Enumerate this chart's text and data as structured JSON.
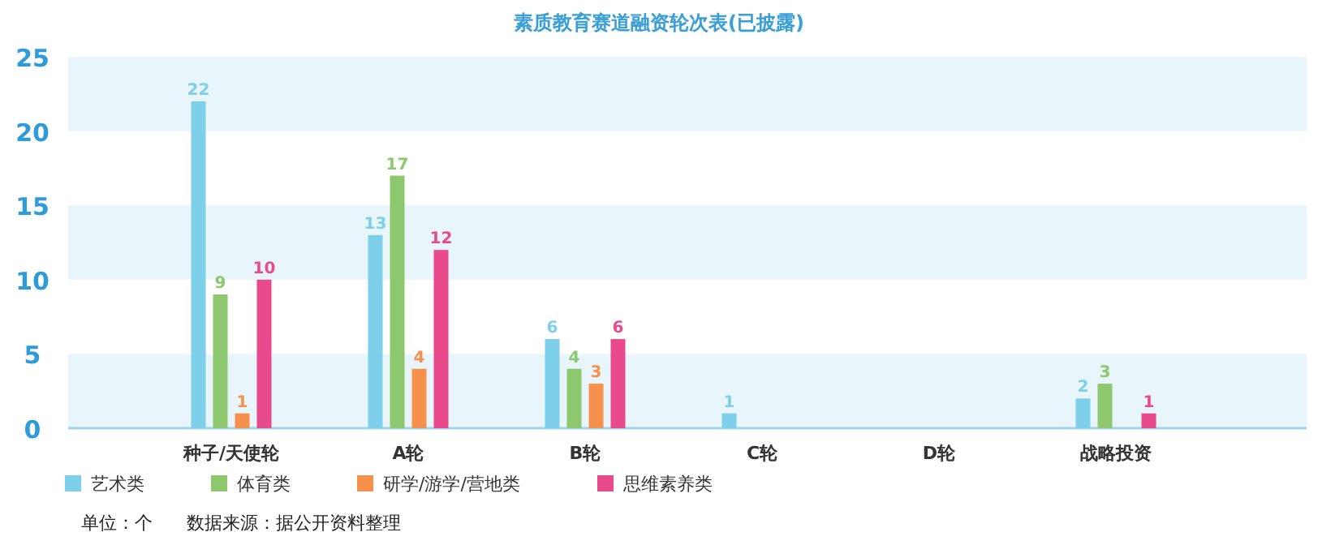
{
  "chart_data": {
    "type": "bar",
    "title": "素质教育赛道融资轮次表(已披露)",
    "categories": [
      "种子/天使轮",
      "A轮",
      "B轮",
      "C轮",
      "D轮",
      "战略投资"
    ],
    "series": [
      {
        "name": "艺术类",
        "color": "#7dcfea",
        "values": [
          22,
          13,
          6,
          1,
          null,
          2
        ]
      },
      {
        "name": "体育类",
        "color": "#8dc86f",
        "values": [
          9,
          17,
          4,
          null,
          null,
          3
        ]
      },
      {
        "name": "研学/游学/营地类",
        "color": "#f5914d",
        "values": [
          1,
          4,
          3,
          null,
          null,
          null
        ]
      },
      {
        "name": "思维素养类",
        "color": "#e84a8b",
        "values": [
          10,
          12,
          6,
          null,
          null,
          1
        ]
      }
    ],
    "ylim": [
      0,
      25
    ],
    "yticks": [
      0,
      5,
      10,
      15,
      20,
      25
    ],
    "legend": "bottom left",
    "data_labels": true,
    "annotations": [
      "单位：个",
      "数据来源：据公开资料整理"
    ]
  }
}
